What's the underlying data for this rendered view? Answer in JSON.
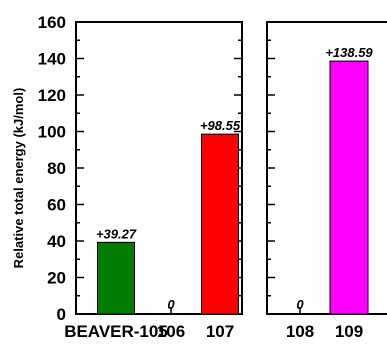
{
  "chart_data": {
    "type": "bar",
    "ylabel": "Relative total energy (kJ/mol)",
    "ylim": [
      0,
      160
    ],
    "yticks": [
      0,
      20,
      40,
      60,
      80,
      100,
      120,
      140,
      160
    ],
    "grid": false,
    "panels": [
      {
        "categories": [
          "BEAVER-105",
          "106",
          "107"
        ],
        "values": [
          39.27,
          0,
          98.55
        ],
        "value_labels": [
          "+39.27",
          "0",
          "+98.55"
        ],
        "colors": [
          "#007d00",
          "#000000",
          "#ff0000"
        ]
      },
      {
        "categories": [
          "108",
          "109"
        ],
        "values": [
          0,
          138.59
        ],
        "value_labels": [
          "0",
          "+138.59"
        ],
        "colors": [
          "#000000",
          "#ff00ff"
        ]
      }
    ]
  }
}
